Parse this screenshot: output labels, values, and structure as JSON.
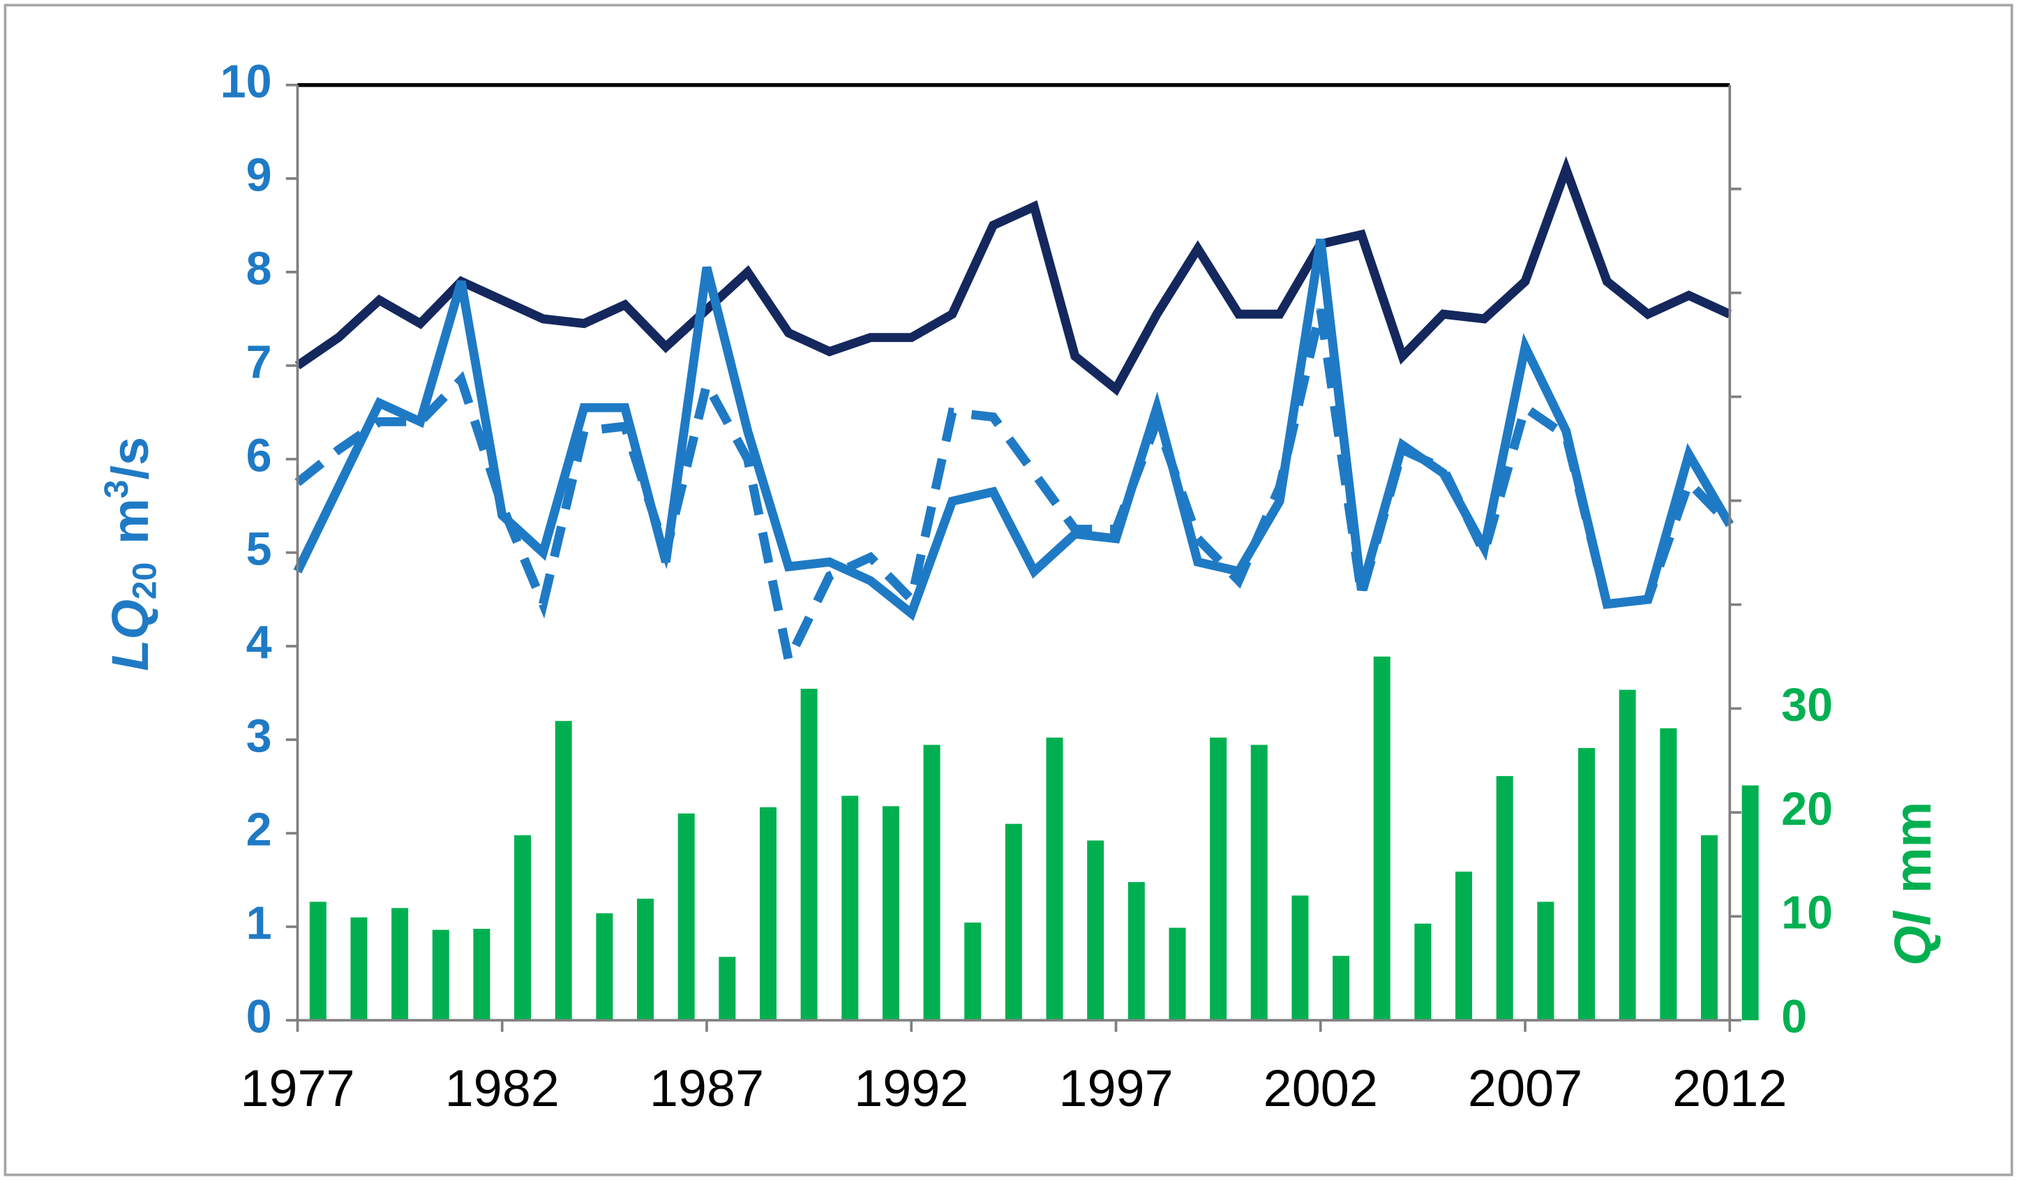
{
  "chart_data": {
    "type": "combo",
    "x": [
      1977,
      1978,
      1979,
      1980,
      1981,
      1982,
      1983,
      1984,
      1985,
      1986,
      1987,
      1988,
      1989,
      1990,
      1991,
      1992,
      1993,
      1994,
      1995,
      1996,
      1997,
      1998,
      1999,
      2000,
      2001,
      2002,
      2003,
      2004,
      2005,
      2006,
      2007,
      2008,
      2009,
      2010,
      2011,
      2012
    ],
    "xlim": [
      1977,
      2012
    ],
    "xticks": [
      1977,
      1982,
      1987,
      1992,
      1997,
      2002,
      2007,
      2012
    ],
    "ylim": [
      0,
      10
    ],
    "yticks": [
      0,
      1,
      2,
      3,
      4,
      5,
      6,
      7,
      8,
      9,
      10
    ],
    "y2lim": [
      0,
      90
    ],
    "y2ticks": [
      0,
      10,
      20,
      30
    ],
    "y2ticks_unlabeled": [
      40,
      50,
      60,
      70,
      80
    ],
    "ylabel_parts": [
      "LQ",
      "20",
      "m",
      "3",
      "/s"
    ],
    "y2label_parts": [
      "Ql",
      "mm"
    ],
    "series": [
      {
        "type": "bar",
        "axis": "y2",
        "color": "#00b050",
        "values": [
          11.4,
          9.9,
          10.8,
          8.7,
          8.8,
          17.8,
          28.8,
          10.3,
          11.7,
          19.9,
          6.1,
          20.5,
          31.9,
          21.6,
          20.6,
          26.5,
          9.4,
          18.9,
          27.2,
          17.3,
          13.3,
          8.9,
          27.2,
          26.5,
          12.0,
          6.2,
          35.0,
          9.3,
          14.3,
          23.5,
          11.4,
          26.2,
          31.8,
          28.1,
          17.8,
          22.6
        ]
      },
      {
        "type": "line",
        "color": "#14285e",
        "dash": false,
        "values": [
          7.0,
          7.3,
          7.7,
          7.45,
          7.9,
          7.7,
          7.5,
          7.45,
          7.65,
          7.2,
          7.6,
          8.0,
          7.35,
          7.15,
          7.3,
          7.3,
          7.55,
          8.5,
          8.7,
          7.1,
          6.75,
          7.55,
          8.25,
          7.55,
          7.55,
          8.3,
          8.4,
          7.1,
          7.55,
          7.5,
          7.9,
          9.1,
          7.9,
          7.55,
          7.75,
          7.55
        ]
      },
      {
        "type": "line",
        "color": "#1f7ac5",
        "dash": true,
        "values": [
          5.75,
          6.1,
          6.4,
          6.4,
          6.85,
          5.5,
          4.45,
          6.3,
          6.35,
          5.0,
          6.8,
          6.0,
          3.85,
          4.75,
          4.95,
          4.5,
          6.5,
          6.45,
          5.85,
          5.25,
          5.25,
          6.4,
          5.15,
          4.7,
          5.7,
          7.6,
          4.55,
          6.1,
          5.9,
          5.0,
          6.55,
          6.25,
          4.45,
          4.5,
          5.75,
          5.3
        ]
      },
      {
        "type": "line",
        "color": "#1f7ac5",
        "dash": false,
        "values": [
          4.8,
          5.7,
          6.6,
          6.4,
          7.9,
          5.4,
          5.0,
          6.55,
          6.55,
          4.9,
          8.05,
          6.3,
          4.85,
          4.9,
          4.7,
          4.35,
          5.55,
          5.65,
          4.8,
          5.2,
          5.15,
          6.55,
          4.9,
          4.8,
          5.55,
          8.35,
          4.6,
          6.15,
          5.85,
          5.05,
          7.2,
          6.3,
          4.45,
          4.5,
          6.05,
          5.3
        ]
      }
    ]
  }
}
